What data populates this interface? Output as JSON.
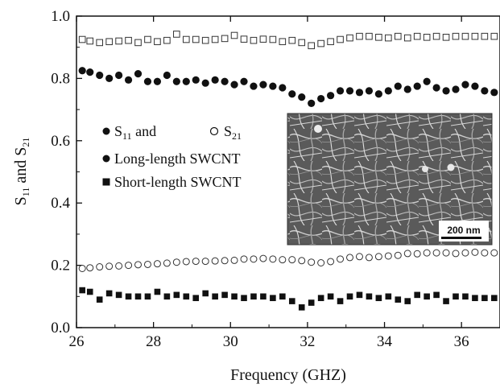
{
  "chart_data": {
    "type": "scatter",
    "xlabel": "Frequency (GHZ)",
    "ylabel": {
      "main": "S",
      "sub1": "11",
      "mid": " and S",
      "sub2": "21"
    },
    "xlim": [
      26,
      37
    ],
    "ylim": [
      0.0,
      1.0
    ],
    "x_ticks": [
      "26",
      "28",
      "30",
      "32",
      "34",
      "36"
    ],
    "y_ticks": [
      "0.0",
      "0.2",
      "0.4",
      "0.6",
      "0.8",
      "1.0"
    ],
    "legend": {
      "row1_a": "S",
      "row1_a_sub": "11",
      "row1_b": " and",
      "row1_c": "S",
      "row1_c_sub": "21",
      "row2": "Long-length SWCNT",
      "row3": "Short-length SWCNT"
    },
    "inset": {
      "scale_label": "200 nm"
    },
    "x": [
      26.15,
      26.35,
      26.6,
      26.85,
      27.1,
      27.35,
      27.6,
      27.85,
      28.1,
      28.35,
      28.6,
      28.85,
      29.1,
      29.35,
      29.6,
      29.85,
      30.1,
      30.35,
      30.6,
      30.85,
      31.1,
      31.35,
      31.6,
      31.85,
      32.1,
      32.35,
      32.6,
      32.85,
      33.1,
      33.35,
      33.6,
      33.85,
      34.1,
      34.35,
      34.6,
      34.85,
      35.1,
      35.35,
      35.6,
      35.85,
      36.1,
      36.35,
      36.6,
      36.85
    ],
    "series": [
      {
        "marker": "open-square",
        "values": [
          0.925,
          0.92,
          0.915,
          0.918,
          0.92,
          0.922,
          0.915,
          0.925,
          0.918,
          0.922,
          0.942,
          0.925,
          0.925,
          0.922,
          0.925,
          0.928,
          0.938,
          0.926,
          0.922,
          0.926,
          0.925,
          0.918,
          0.922,
          0.915,
          0.905,
          0.912,
          0.918,
          0.925,
          0.93,
          0.935,
          0.935,
          0.932,
          0.93,
          0.935,
          0.93,
          0.935,
          0.932,
          0.935,
          0.932,
          0.935,
          0.935,
          0.935,
          0.935,
          0.935
        ]
      },
      {
        "marker": "filled-circle",
        "values": [
          0.825,
          0.82,
          0.81,
          0.8,
          0.81,
          0.795,
          0.815,
          0.79,
          0.79,
          0.81,
          0.79,
          0.79,
          0.795,
          0.785,
          0.795,
          0.79,
          0.78,
          0.79,
          0.775,
          0.78,
          0.775,
          0.77,
          0.75,
          0.74,
          0.72,
          0.735,
          0.745,
          0.76,
          0.76,
          0.755,
          0.76,
          0.75,
          0.76,
          0.775,
          0.765,
          0.775,
          0.79,
          0.77,
          0.76,
          0.765,
          0.78,
          0.775,
          0.76,
          0.755
        ]
      },
      {
        "marker": "open-circle",
        "values": [
          0.19,
          0.192,
          0.195,
          0.197,
          0.198,
          0.2,
          0.202,
          0.203,
          0.205,
          0.207,
          0.21,
          0.212,
          0.213,
          0.213,
          0.214,
          0.215,
          0.216,
          0.22,
          0.22,
          0.222,
          0.22,
          0.218,
          0.218,
          0.215,
          0.21,
          0.208,
          0.212,
          0.22,
          0.225,
          0.228,
          0.225,
          0.228,
          0.23,
          0.232,
          0.238,
          0.237,
          0.24,
          0.24,
          0.24,
          0.238,
          0.24,
          0.242,
          0.24,
          0.24
        ]
      },
      {
        "marker": "filled-square",
        "values": [
          0.12,
          0.115,
          0.09,
          0.11,
          0.105,
          0.1,
          0.1,
          0.1,
          0.115,
          0.1,
          0.105,
          0.1,
          0.095,
          0.11,
          0.1,
          0.105,
          0.1,
          0.095,
          0.1,
          0.1,
          0.095,
          0.1,
          0.085,
          0.065,
          0.08,
          0.095,
          0.1,
          0.085,
          0.1,
          0.105,
          0.1,
          0.095,
          0.1,
          0.09,
          0.085,
          0.105,
          0.1,
          0.105,
          0.085,
          0.1,
          0.1,
          0.095,
          0.095,
          0.095
        ]
      }
    ]
  }
}
